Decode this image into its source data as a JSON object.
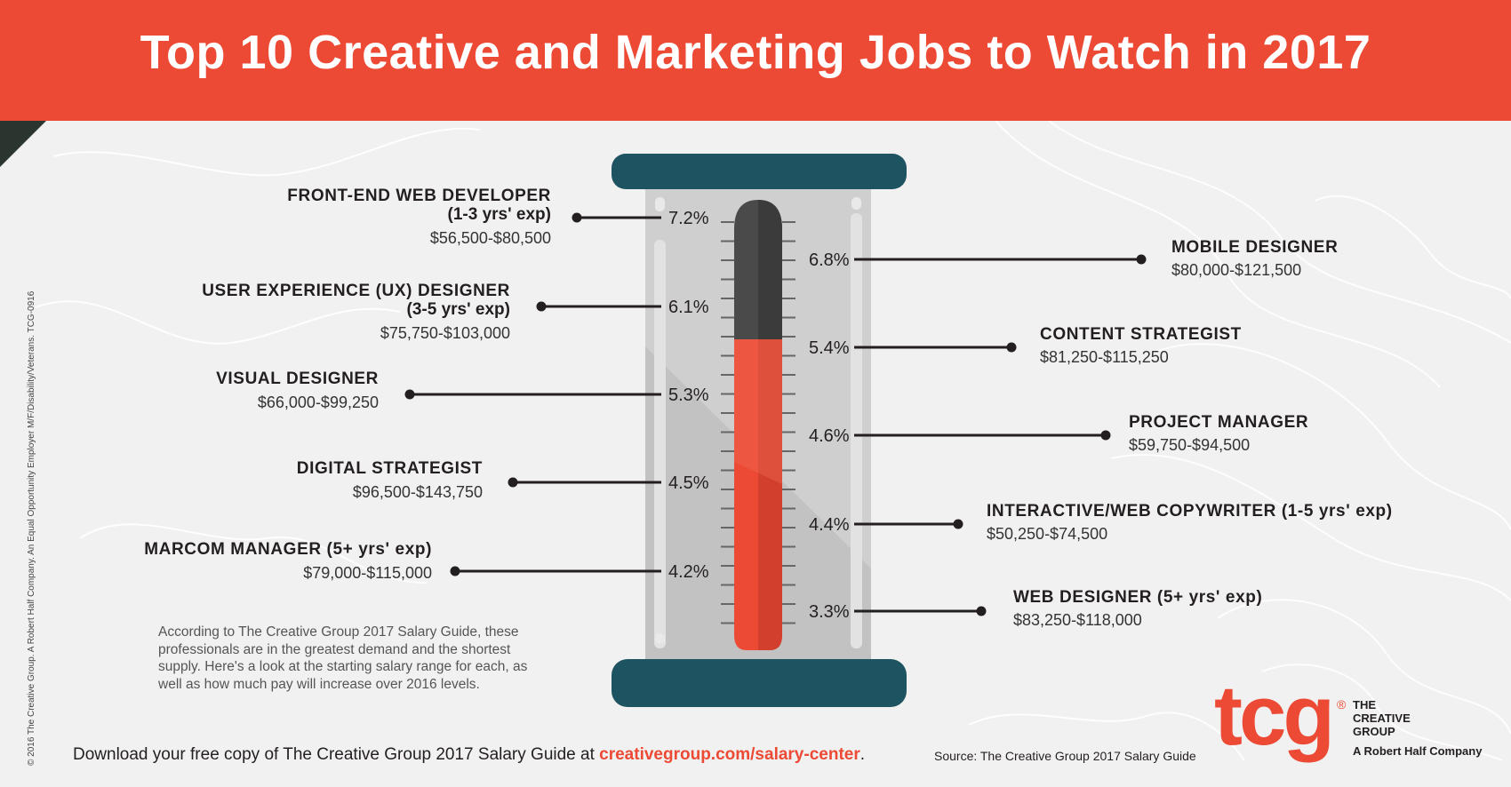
{
  "header": {
    "title": "Top 10 Creative and Marketing Jobs to Watch in 2017"
  },
  "side_text": "© 2016 The Creative Group. A Robert Half Company. An Equal Opportunity Employer M/F/Disability/Veterans. TCG-0916",
  "intro": "According to The Creative Group 2017 Salary Guide, these professionals are in the greatest demand and the shortest supply. Here's a look at the starting salary range for each, as well as how much pay will increase over 2016 levels.",
  "footer": {
    "text": "Download your free copy of The Creative Group 2017 Salary Guide at ",
    "link": "creativegroup.com/salary-center",
    "period": "."
  },
  "source": "Source: The Creative Group 2017 Salary Guide",
  "logo": {
    "mark": "tcg",
    "registered": "®",
    "name_line1": "THE",
    "name_line2": "CREATIVE",
    "name_line3": "GROUP",
    "tagline": "A Robert Half Company"
  },
  "colors": {
    "accent": "#ec4a34",
    "dark": "#1e5462",
    "thermo_dark": "#4a4a4a",
    "text": "#231f20"
  },
  "chart_data": {
    "type": "thermometer-infographic",
    "metric_unit": "%",
    "left": [
      {
        "job": "FRONT-END WEB DEVELOPER",
        "experience": "(1-3 yrs' exp)",
        "salary": "$56,500-$80,500",
        "increase": 7.2,
        "label": "7.2%"
      },
      {
        "job": "USER EXPERIENCE (UX) DESIGNER",
        "experience": "(3-5 yrs' exp)",
        "salary": "$75,750-$103,000",
        "increase": 6.1,
        "label": "6.1%"
      },
      {
        "job": "VISUAL DESIGNER",
        "experience": "",
        "salary": "$66,000-$99,250",
        "increase": 5.3,
        "label": "5.3%"
      },
      {
        "job": "DIGITAL STRATEGIST",
        "experience": "",
        "salary": "$96,500-$143,750",
        "increase": 4.5,
        "label": "4.5%"
      },
      {
        "job": "MARCOM MANAGER (5+ yrs' exp)",
        "experience": "",
        "salary": "$79,000-$115,000",
        "increase": 4.2,
        "label": "4.2%"
      }
    ],
    "right": [
      {
        "job": "MOBILE DESIGNER",
        "experience": "",
        "salary": "$80,000-$121,500",
        "increase": 6.8,
        "label": "6.8%"
      },
      {
        "job": "CONTENT STRATEGIST",
        "experience": "",
        "salary": "$81,250-$115,250",
        "increase": 5.4,
        "label": "5.4%"
      },
      {
        "job": "PROJECT MANAGER",
        "experience": "",
        "salary": "$59,750-$94,500",
        "increase": 4.6,
        "label": "4.6%"
      },
      {
        "job": "INTERACTIVE/WEB COPYWRITER (1-5 yrs' exp)",
        "experience": "",
        "salary": "$50,250-$74,500",
        "increase": 4.4,
        "label": "4.4%"
      },
      {
        "job": "WEB DESIGNER (5+ yrs' exp)",
        "experience": "",
        "salary": "$83,250-$118,000",
        "increase": 3.3,
        "label": "3.3%"
      }
    ]
  }
}
